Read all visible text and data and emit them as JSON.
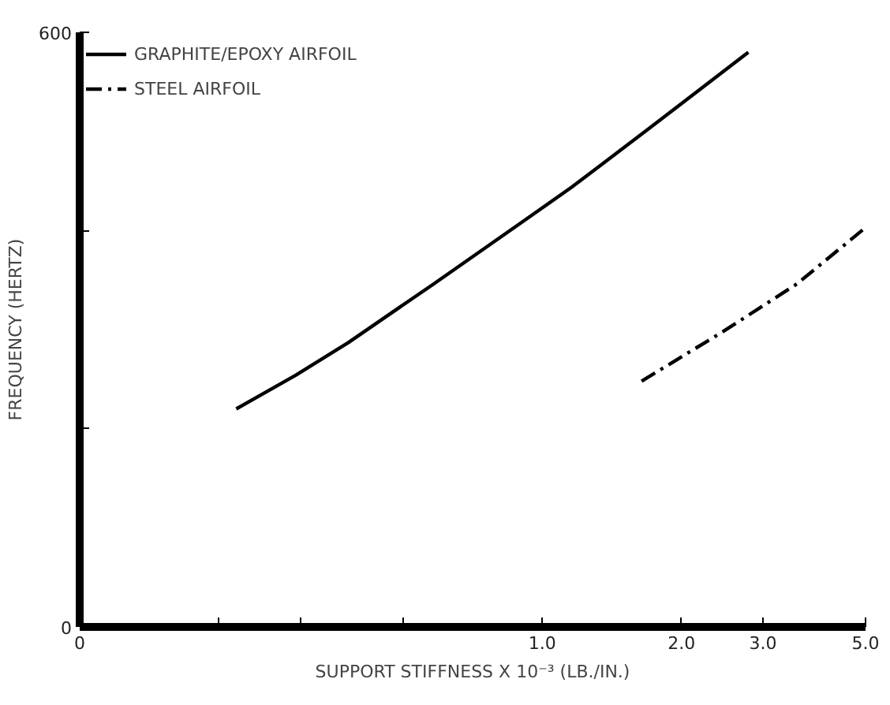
{
  "chart_data": {
    "type": "line",
    "xlabel": "SUPPORT STIFFNESS X 10⁻³ (LB./IN.)",
    "ylabel": "FREQUENCY (HERTZ)",
    "log": "x",
    "xlim": [
      0.1,
      5
    ],
    "ylim": [
      0,
      600
    ],
    "xticks": [
      {
        "value": 0.1,
        "label": "0"
      },
      {
        "value": 0.2,
        "label": null
      },
      {
        "value": 0.3,
        "label": null
      },
      {
        "value": 0.5,
        "label": null
      },
      {
        "value": 1,
        "label": "1.0"
      },
      {
        "value": 2,
        "label": "2.0"
      },
      {
        "value": 3,
        "label": "3.0"
      },
      {
        "value": 5,
        "label": "5.0"
      }
    ],
    "yticks": [
      0,
      {
        "value": 200,
        "label": null
      },
      {
        "value": 400,
        "label": null
      },
      600
    ],
    "grid": false,
    "legend": "top left",
    "marker": "none",
    "series": [
      {
        "name": "GRAPHITE/EPOXY AIRFOIL",
        "color": "#000000",
        "line_style": "solid",
        "x": [
          0.218,
          0.293,
          0.381,
          0.582,
          0.895,
          1.16,
          1.69,
          2.2,
          2.79
        ],
        "values": [
          220,
          254,
          287,
          346,
          407,
          444,
          502,
          543,
          580
        ]
      },
      {
        "name": "STEEL AIRFOIL",
        "color": "#000000",
        "line_style": "dashdot",
        "x": [
          1.64,
          2.44,
          3.55,
          5.0
        ],
        "values": [
          248,
          297,
          346,
          403
        ]
      }
    ]
  }
}
